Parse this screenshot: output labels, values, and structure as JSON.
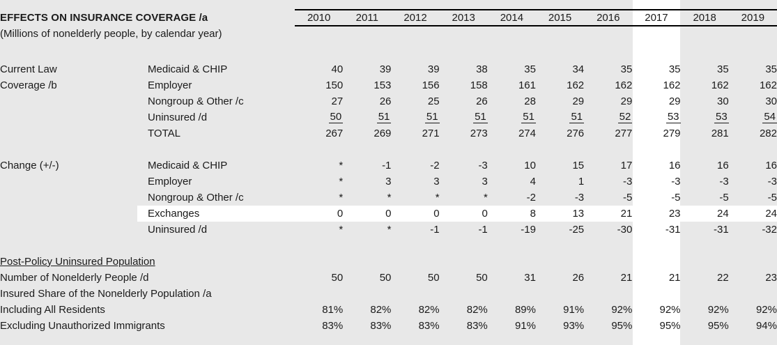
{
  "table": {
    "title": "EFFECTS ON INSURANCE COVERAGE /a",
    "subtitle": "(Millions of nonelderly people, by calendar year)",
    "years": [
      "2010",
      "2011",
      "2012",
      "2013",
      "2014",
      "2015",
      "2016",
      "2017",
      "2018",
      "2019"
    ],
    "highlight_year": "2017",
    "highlight_row": "Exchanges",
    "colors": {
      "background": "#e8e8e8",
      "highlight_band": "#ffffff",
      "text": "#1a1a1a",
      "rule": "#000000"
    },
    "sections": [
      {
        "label_lines": [
          "Current Law",
          "Coverage /b"
        ],
        "rows": [
          {
            "label": "Medicaid & CHIP",
            "underline": false,
            "highlight": false,
            "values": [
              "40",
              "39",
              "39",
              "38",
              "35",
              "34",
              "35",
              "35",
              "35",
              "35"
            ]
          },
          {
            "label": "Employer",
            "underline": false,
            "highlight": false,
            "values": [
              "150",
              "153",
              "156",
              "158",
              "161",
              "162",
              "162",
              "162",
              "162",
              "162"
            ]
          },
          {
            "label": "Nongroup & Other /c",
            "underline": false,
            "highlight": false,
            "values": [
              "27",
              "26",
              "25",
              "26",
              "28",
              "29",
              "29",
              "29",
              "30",
              "30"
            ]
          },
          {
            "label": "Uninsured /d",
            "underline": true,
            "highlight": false,
            "values": [
              "50",
              "51",
              "51",
              "51",
              "51",
              "51",
              "52",
              "53",
              "53",
              "54"
            ]
          },
          {
            "label": "TOTAL",
            "underline": false,
            "highlight": false,
            "values": [
              "267",
              "269",
              "271",
              "273",
              "274",
              "276",
              "277",
              "279",
              "281",
              "282"
            ]
          }
        ]
      },
      {
        "label_lines": [
          "Change (+/-)"
        ],
        "rows": [
          {
            "label": "Medicaid & CHIP",
            "underline": false,
            "highlight": false,
            "values": [
              "*",
              "-1",
              "-2",
              "-3",
              "10",
              "15",
              "17",
              "16",
              "16",
              "16"
            ]
          },
          {
            "label": "Employer",
            "underline": false,
            "highlight": false,
            "values": [
              "*",
              "3",
              "3",
              "3",
              "4",
              "1",
              "-3",
              "-3",
              "-3",
              "-3"
            ]
          },
          {
            "label": "Nongroup & Other /c",
            "underline": false,
            "highlight": false,
            "values": [
              "*",
              "*",
              "*",
              "*",
              "-2",
              "-3",
              "-5",
              "-5",
              "-5",
              "-5"
            ]
          },
          {
            "label": "Exchanges",
            "underline": false,
            "highlight": true,
            "values": [
              "0",
              "0",
              "0",
              "0",
              "8",
              "13",
              "21",
              "23",
              "24",
              "24"
            ]
          },
          {
            "label": "Uninsured /d",
            "underline": false,
            "highlight": false,
            "values": [
              "*",
              "*",
              "-1",
              "-1",
              "-19",
              "-25",
              "-30",
              "-31",
              "-31",
              "-32"
            ]
          }
        ]
      }
    ],
    "footer": {
      "heading": "Post-Policy Uninsured Population",
      "rows": [
        {
          "label": "Number of Nonelderly People /d",
          "indent": 1,
          "values": [
            "50",
            "50",
            "50",
            "50",
            "31",
            "26",
            "21",
            "21",
            "22",
            "23"
          ]
        },
        {
          "label": "Insured Share of the Nonelderly Population /a",
          "indent": 1,
          "values": [
            "",
            "",
            "",
            "",
            "",
            "",
            "",
            "",
            "",
            ""
          ]
        },
        {
          "label": "Including All Residents",
          "indent": 2,
          "values": [
            "81%",
            "82%",
            "82%",
            "82%",
            "89%",
            "91%",
            "92%",
            "92%",
            "92%",
            "92%"
          ]
        },
        {
          "label": "Excluding Unauthorized Immigrants",
          "indent": 2,
          "values": [
            "83%",
            "83%",
            "83%",
            "83%",
            "91%",
            "93%",
            "95%",
            "95%",
            "95%",
            "94%"
          ]
        }
      ]
    }
  }
}
